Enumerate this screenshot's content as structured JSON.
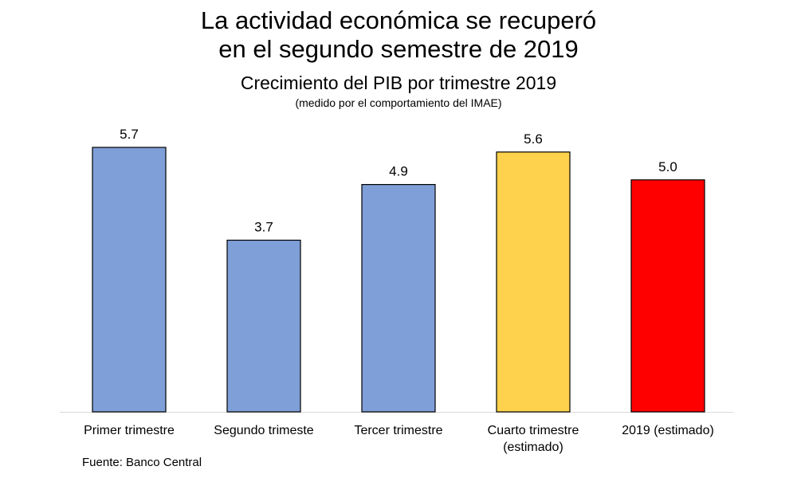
{
  "header": {
    "title_line1": "La actividad económica se recuperó",
    "title_line2": "en el segundo semestre de 2019",
    "subtitle": "Crecimiento del PIB por trimestre 2019",
    "note": "(medido por el comportamiento del IMAE)"
  },
  "footer": {
    "source": "Fuente: Banco Central"
  },
  "chart_data": {
    "type": "bar",
    "title": "Crecimiento del PIB por trimestre 2019",
    "subtitle": "(medido por el comportamiento del IMAE)",
    "categories": [
      [
        "Primer trimestre"
      ],
      [
        "Segundo trimeste"
      ],
      [
        "Tercer trimestre"
      ],
      [
        "Cuarto trimestre",
        "(estimado)"
      ],
      [
        "2019 (estimado)"
      ]
    ],
    "values": [
      5.7,
      3.7,
      4.9,
      5.6,
      5.0
    ],
    "value_labels": [
      "5.7",
      "3.7",
      "4.9",
      "5.6",
      "5.0"
    ],
    "colors": [
      "#7F9FD8",
      "#7F9FD8",
      "#7F9FD8",
      "#FFD24D",
      "#FF0000"
    ],
    "xlabel": "",
    "ylabel": "",
    "ylim": [
      0,
      5.7
    ],
    "grid": false,
    "legend": "none"
  }
}
